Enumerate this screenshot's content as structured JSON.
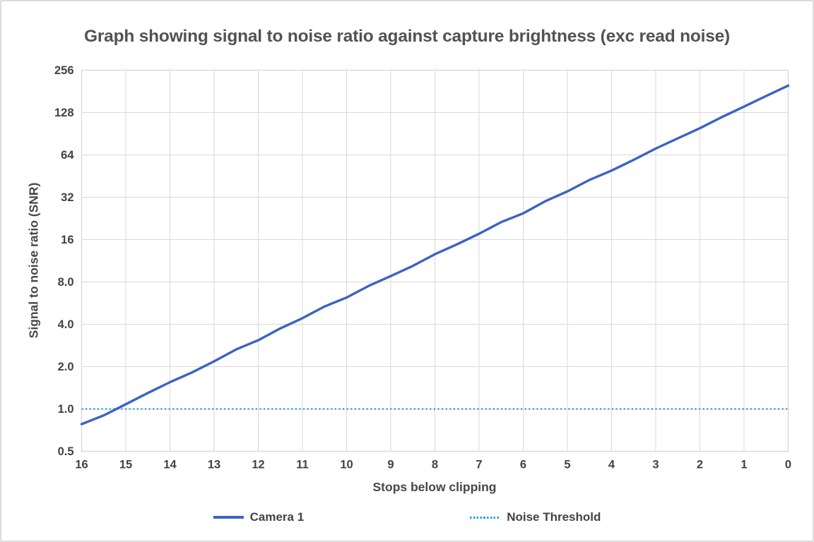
{
  "title": "Graph showing signal to noise ratio against capture brightness (exc read noise)",
  "colors": {
    "camera_line": "#3B63C4",
    "noise_line": "#29A3DC",
    "gridline": "#D9D9D9",
    "tick_text": "#424242",
    "title_text": "#525252",
    "frame_border": "#DCDCDC"
  },
  "chart_data": {
    "type": "line",
    "title": "Graph showing signal to noise ratio against capture brightness (exc read noise)",
    "xlabel": "Stops below clipping",
    "ylabel": "Signal to noise ratio (SNR)",
    "grid": true,
    "legend_position": "bottom",
    "x_axis": {
      "reversed": true,
      "min": 0,
      "max": 16,
      "ticks": [
        16,
        15,
        14,
        13,
        12,
        11,
        10,
        9,
        8,
        7,
        6,
        5,
        4,
        3,
        2,
        1,
        0
      ]
    },
    "y_axis": {
      "scale": "log2",
      "min": 0.5,
      "max": 256,
      "ticks": [
        {
          "value": 256,
          "label": "256"
        },
        {
          "value": 128,
          "label": "128"
        },
        {
          "value": 64,
          "label": "64"
        },
        {
          "value": 32,
          "label": "32"
        },
        {
          "value": 16,
          "label": "16"
        },
        {
          "value": 8,
          "label": "8.0"
        },
        {
          "value": 4,
          "label": "4.0"
        },
        {
          "value": 2,
          "label": "2.0"
        },
        {
          "value": 1,
          "label": "1.0"
        },
        {
          "value": 0.5,
          "label": "0.5"
        }
      ]
    },
    "series": [
      {
        "name": "Camera 1",
        "style": "solid",
        "color": "#3B63C4",
        "x": [
          16,
          15.5,
          15,
          14.5,
          14,
          13.5,
          13,
          12.5,
          12,
          11.5,
          11,
          10.5,
          10,
          9.5,
          9,
          8.5,
          8,
          7.5,
          7,
          6.5,
          6,
          5.5,
          5,
          4.5,
          4,
          3.5,
          3,
          2.5,
          2,
          1.5,
          1,
          0.5,
          0
        ],
        "y": [
          0.78,
          0.9,
          1.08,
          1.3,
          1.55,
          1.82,
          2.18,
          2.65,
          3.08,
          3.74,
          4.42,
          5.35,
          6.2,
          7.5,
          8.8,
          10.4,
          12.6,
          14.8,
          17.6,
          21.3,
          24.6,
          30.0,
          35.2,
          42.5,
          49.5,
          59.0,
          71.0,
          84.0,
          99.0,
          119.0,
          141.0,
          168.0,
          199.0
        ]
      },
      {
        "name": "Noise Threshold",
        "style": "dotted",
        "color": "#29A3DC",
        "y_constant": 1.0
      }
    ]
  }
}
